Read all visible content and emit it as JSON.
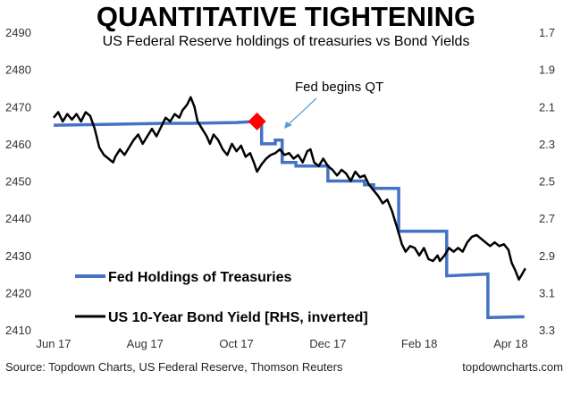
{
  "chart_data": {
    "type": "line",
    "title": "QUANTITATIVE TIGHTENING",
    "subtitle": "US Federal Reserve holdings of treasuries vs Bond Yields",
    "x_tick_labels": [
      "Jun 17",
      "Aug 17",
      "Oct 17",
      "Dec 17",
      "Feb 18",
      "Apr 18"
    ],
    "x_range_months": [
      0,
      10.5
    ],
    "y_left": {
      "range": [
        2410,
        2490
      ],
      "ticks": [
        2410,
        2420,
        2430,
        2440,
        2450,
        2460,
        2470,
        2480,
        2490
      ]
    },
    "y_right": {
      "range_inverted": [
        1.7,
        3.3
      ],
      "ticks": [
        "1.7",
        "1.9",
        "2.1",
        "2.3",
        "2.5",
        "2.7",
        "2.9",
        "3.1",
        "3.3"
      ]
    },
    "series": [
      {
        "name": "Fed Holdings of Treasuries",
        "axis": "left",
        "color": "#4472C4",
        "step": true,
        "points": [
          [
            0.0,
            2465
          ],
          [
            1.6,
            2465.3
          ],
          [
            2.4,
            2465.5
          ],
          [
            3.0,
            2465.5
          ],
          [
            4.0,
            2465.7
          ],
          [
            4.4,
            2466.0
          ],
          [
            4.55,
            2466.0
          ],
          [
            4.55,
            2460.0
          ],
          [
            4.85,
            2460.0
          ],
          [
            4.85,
            2461.0
          ],
          [
            5.0,
            2461.0
          ],
          [
            5.0,
            2455.0
          ],
          [
            5.3,
            2455.0
          ],
          [
            5.3,
            2454.0
          ],
          [
            6.0,
            2454.0
          ],
          [
            6.0,
            2450.0
          ],
          [
            6.8,
            2450.0
          ],
          [
            6.8,
            2449.0
          ],
          [
            7.0,
            2449.0
          ],
          [
            7.0,
            2448.0
          ],
          [
            7.55,
            2448.0
          ],
          [
            7.55,
            2436.5
          ],
          [
            8.6,
            2436.5
          ],
          [
            8.6,
            2424.5
          ],
          [
            9.5,
            2425.0
          ],
          [
            9.5,
            2413.3
          ],
          [
            10.3,
            2413.5
          ]
        ]
      },
      {
        "name": "US 10-Year Bond Yield [RHS, inverted]",
        "axis": "right",
        "color": "#000000",
        "points": [
          [
            0.0,
            2.16
          ],
          [
            0.1,
            2.13
          ],
          [
            0.2,
            2.18
          ],
          [
            0.3,
            2.14
          ],
          [
            0.4,
            2.17
          ],
          [
            0.5,
            2.14
          ],
          [
            0.6,
            2.18
          ],
          [
            0.7,
            2.13
          ],
          [
            0.8,
            2.15
          ],
          [
            0.9,
            2.22
          ],
          [
            1.0,
            2.32
          ],
          [
            1.1,
            2.36
          ],
          [
            1.2,
            2.38
          ],
          [
            1.3,
            2.4
          ],
          [
            1.35,
            2.37
          ],
          [
            1.45,
            2.33
          ],
          [
            1.55,
            2.36
          ],
          [
            1.65,
            2.32
          ],
          [
            1.75,
            2.28
          ],
          [
            1.85,
            2.25
          ],
          [
            1.95,
            2.3
          ],
          [
            2.05,
            2.26
          ],
          [
            2.15,
            2.22
          ],
          [
            2.25,
            2.26
          ],
          [
            2.35,
            2.21
          ],
          [
            2.45,
            2.16
          ],
          [
            2.55,
            2.18
          ],
          [
            2.65,
            2.14
          ],
          [
            2.75,
            2.16
          ],
          [
            2.82,
            2.12
          ],
          [
            2.92,
            2.09
          ],
          [
            3.0,
            2.05
          ],
          [
            3.08,
            2.1
          ],
          [
            3.15,
            2.18
          ],
          [
            3.25,
            2.22
          ],
          [
            3.35,
            2.26
          ],
          [
            3.42,
            2.3
          ],
          [
            3.5,
            2.25
          ],
          [
            3.6,
            2.28
          ],
          [
            3.7,
            2.33
          ],
          [
            3.8,
            2.36
          ],
          [
            3.9,
            2.3
          ],
          [
            4.0,
            2.34
          ],
          [
            4.1,
            2.31
          ],
          [
            4.2,
            2.37
          ],
          [
            4.3,
            2.35
          ],
          [
            4.38,
            2.4
          ],
          [
            4.45,
            2.45
          ],
          [
            4.55,
            2.41
          ],
          [
            4.65,
            2.38
          ],
          [
            4.75,
            2.36
          ],
          [
            4.85,
            2.35
          ],
          [
            4.95,
            2.33
          ],
          [
            5.05,
            2.36
          ],
          [
            5.15,
            2.35
          ],
          [
            5.25,
            2.38
          ],
          [
            5.35,
            2.36
          ],
          [
            5.45,
            2.4
          ],
          [
            5.55,
            2.34
          ],
          [
            5.62,
            2.33
          ],
          [
            5.7,
            2.4
          ],
          [
            5.8,
            2.42
          ],
          [
            5.9,
            2.38
          ],
          [
            6.0,
            2.42
          ],
          [
            6.1,
            2.44
          ],
          [
            6.2,
            2.47
          ],
          [
            6.3,
            2.44
          ],
          [
            6.4,
            2.46
          ],
          [
            6.5,
            2.5
          ],
          [
            6.6,
            2.45
          ],
          [
            6.7,
            2.48
          ],
          [
            6.8,
            2.47
          ],
          [
            6.9,
            2.52
          ],
          [
            7.0,
            2.55
          ],
          [
            7.1,
            2.58
          ],
          [
            7.2,
            2.62
          ],
          [
            7.3,
            2.6
          ],
          [
            7.4,
            2.66
          ],
          [
            7.5,
            2.74
          ],
          [
            7.55,
            2.78
          ],
          [
            7.62,
            2.84
          ],
          [
            7.7,
            2.88
          ],
          [
            7.8,
            2.85
          ],
          [
            7.9,
            2.86
          ],
          [
            8.0,
            2.9
          ],
          [
            8.1,
            2.86
          ],
          [
            8.2,
            2.92
          ],
          [
            8.3,
            2.93
          ],
          [
            8.4,
            2.9
          ],
          [
            8.45,
            2.93
          ],
          [
            8.55,
            2.9
          ],
          [
            8.65,
            2.86
          ],
          [
            8.75,
            2.88
          ],
          [
            8.85,
            2.86
          ],
          [
            8.95,
            2.88
          ],
          [
            9.05,
            2.83
          ],
          [
            9.15,
            2.8
          ],
          [
            9.25,
            2.79
          ],
          [
            9.35,
            2.81
          ],
          [
            9.45,
            2.83
          ],
          [
            9.55,
            2.85
          ],
          [
            9.65,
            2.83
          ],
          [
            9.75,
            2.85
          ],
          [
            9.85,
            2.84
          ],
          [
            9.95,
            2.87
          ],
          [
            10.02,
            2.94
          ],
          [
            10.1,
            2.98
          ],
          [
            10.18,
            3.03
          ],
          [
            10.25,
            3.0
          ],
          [
            10.32,
            2.97
          ]
        ]
      }
    ],
    "marker": {
      "x": 4.45,
      "y": 2466.0,
      "color": "#FF0000",
      "shape": "diamond"
    },
    "annotation": "Fed begins QT",
    "legend": {
      "placement": "bottom-left"
    },
    "grid": false
  },
  "footer": {
    "source": "Source: Topdown Charts, US Federal Reserve, Thomson Reuters",
    "brand": "topdowncharts.com"
  }
}
